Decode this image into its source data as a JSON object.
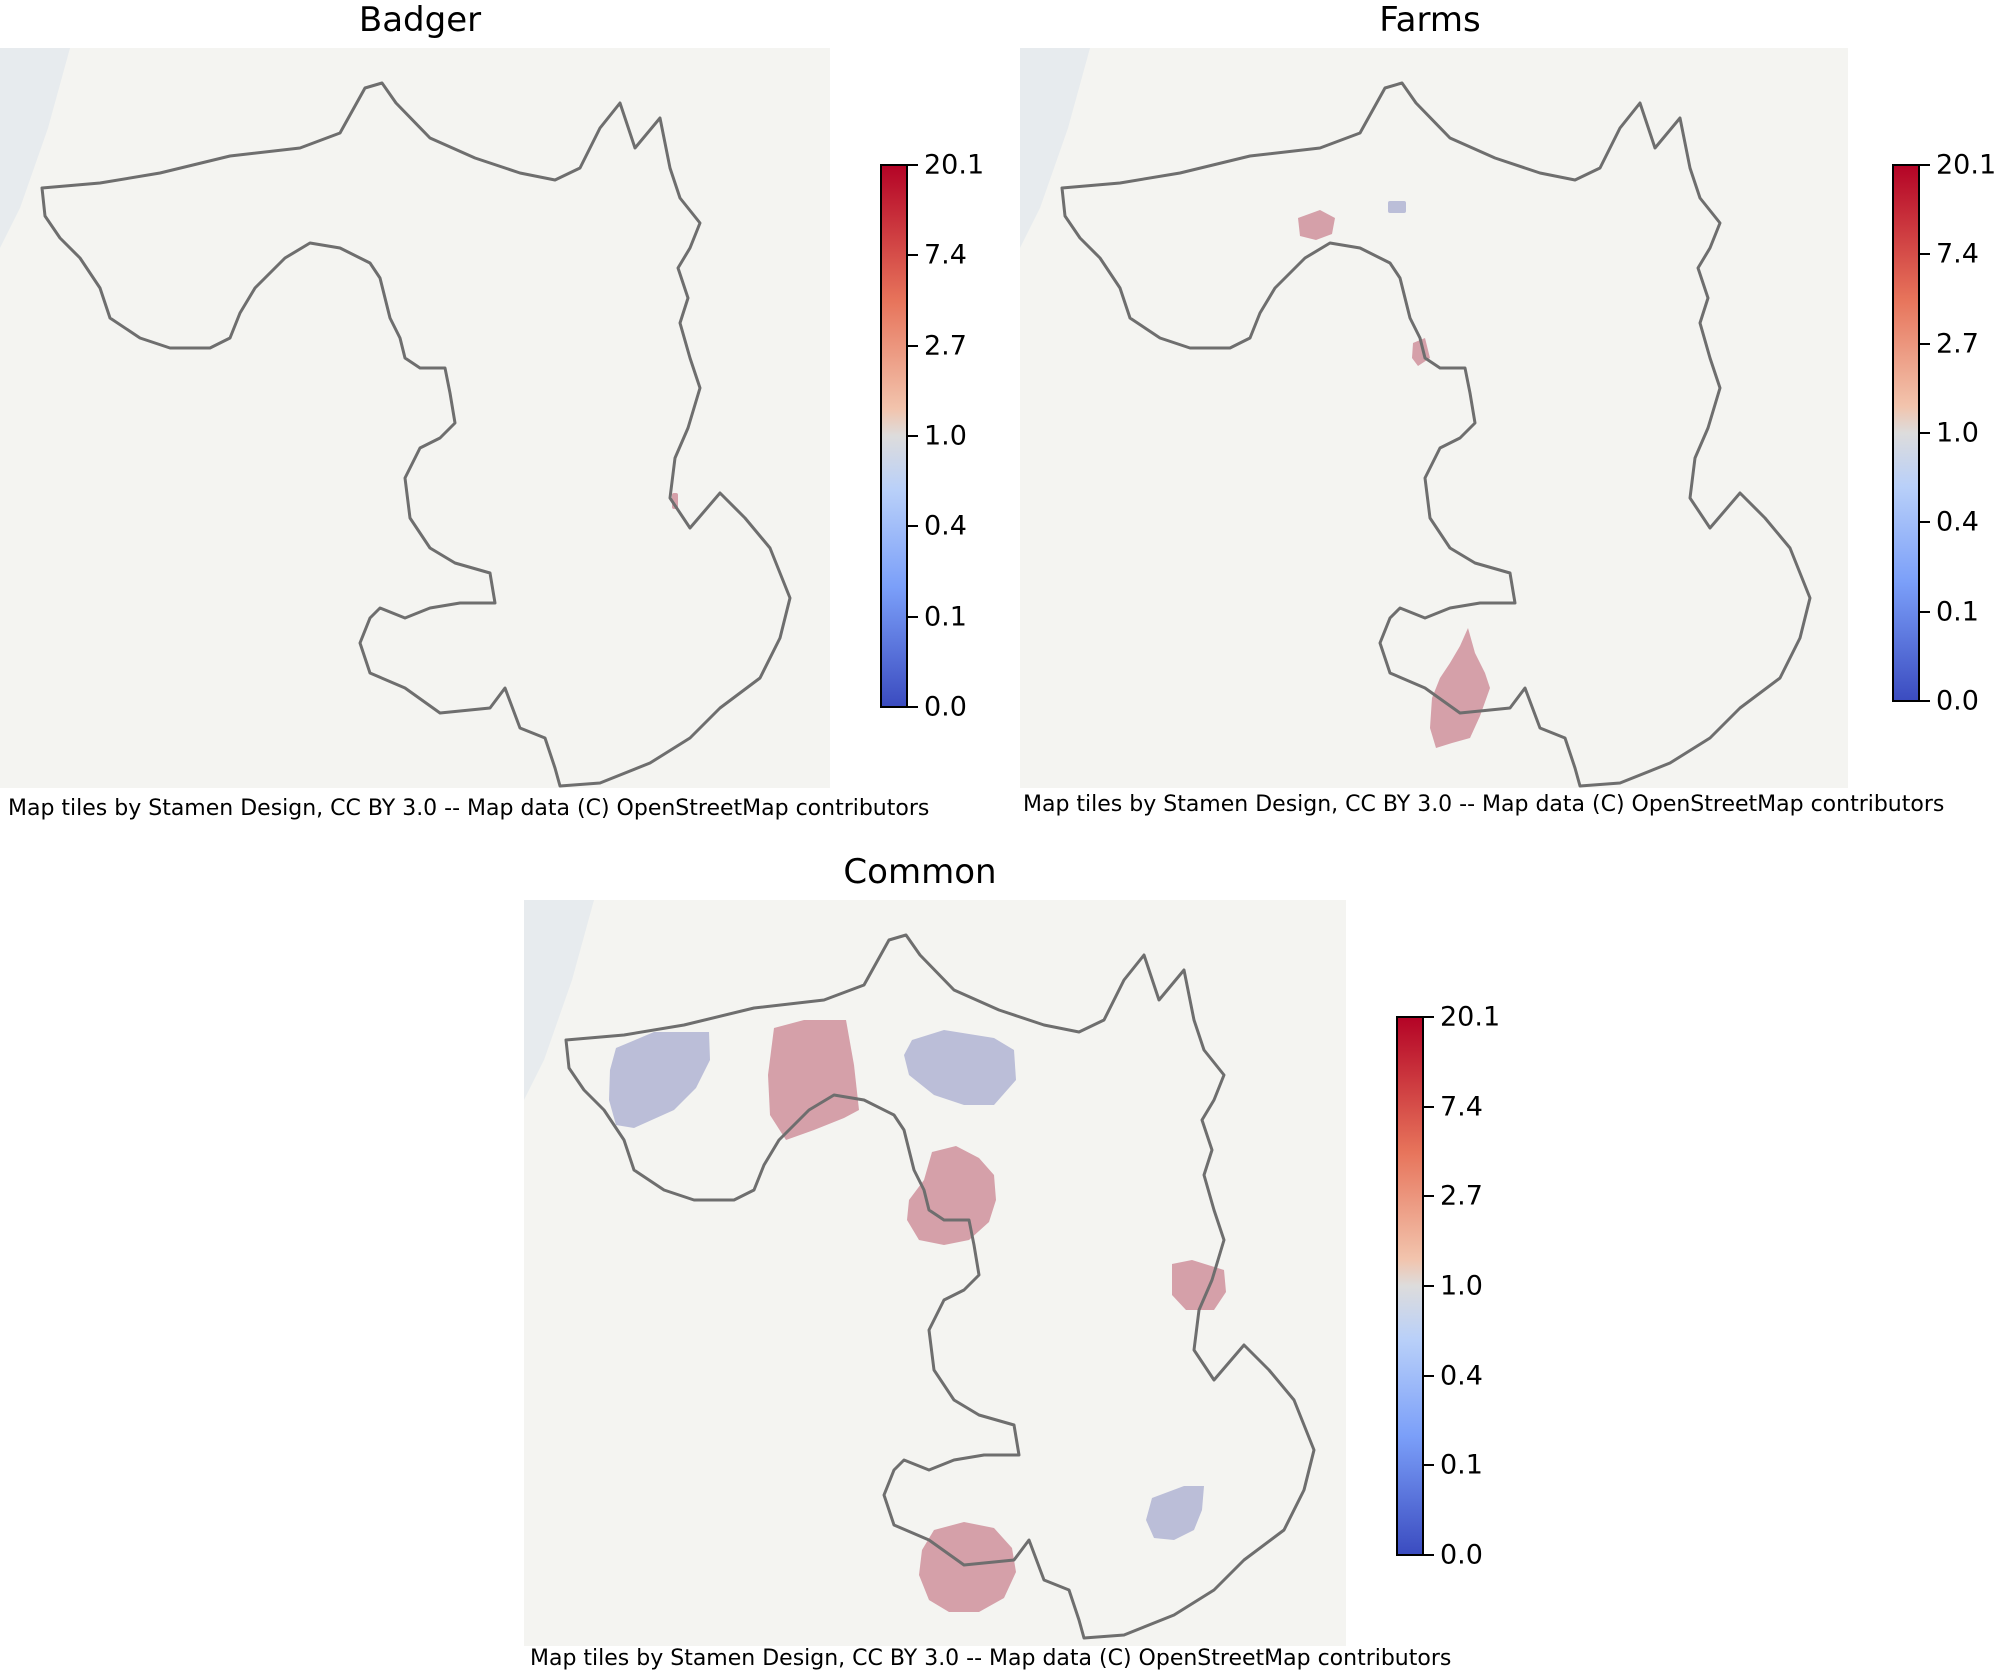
{
  "colors": {
    "background_tile": "#f4f4f1",
    "boundary": "#6e6e6e",
    "high": "#b40426",
    "mid": "#dddcdc",
    "low": "#3b4cc0"
  },
  "colorbar": {
    "ticks": [
      "20.1",
      "7.4",
      "2.7",
      "1.0",
      "0.4",
      "0.1",
      "0.0"
    ]
  },
  "attribution_text": "Map tiles by Stamen Design, CC BY 3.0 -- Map data (C) OpenStreetMap contributors",
  "panels": [
    {
      "id": "badger",
      "title": "Badger",
      "patches": [
        {
          "kind": "high",
          "level": 2.0
        }
      ]
    },
    {
      "id": "farms",
      "title": "Farms",
      "patches": [
        {
          "kind": "high",
          "level": 1.8
        },
        {
          "kind": "low",
          "level": 0.5
        },
        {
          "kind": "high",
          "level": 1.8
        },
        {
          "kind": "high",
          "level": 1.6
        }
      ]
    },
    {
      "id": "common",
      "title": "Common",
      "patches": [
        {
          "kind": "low",
          "level": 0.5
        },
        {
          "kind": "high",
          "level": 2.4
        },
        {
          "kind": "low",
          "level": 0.5
        },
        {
          "kind": "high",
          "level": 2.4
        },
        {
          "kind": "high",
          "level": 2.4
        },
        {
          "kind": "low",
          "level": 0.5
        },
        {
          "kind": "high",
          "level": 2.4
        }
      ]
    }
  ]
}
